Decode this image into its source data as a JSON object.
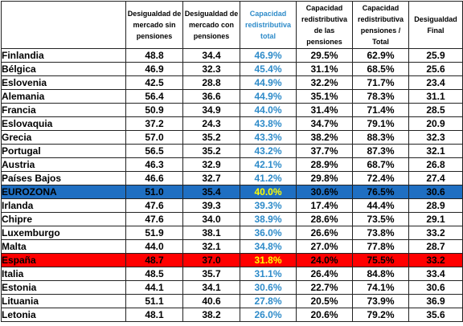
{
  "table": {
    "headers": [
      "",
      "Desigualdad de mercado sin pensiones",
      "Desigualdad de mercado con pensiones",
      "Capacidad redistributiva total",
      "Capacidad redistributiva de las pensiones",
      "Capacidad redistributiva pensiones / Total",
      "Desigualdad Final"
    ],
    "header_colors": [
      "#000000",
      "#000000",
      "#000000",
      "#2e8bc9",
      "#000000",
      "#000000",
      "#000000"
    ],
    "highlight_colors": {
      "eurozona_bg": "#1f6fc2",
      "espana_bg": "#ff0000",
      "highlight_text": "#ffff00",
      "blue_text": "#2e8bc9"
    },
    "rows": [
      {
        "country": "Finlandia",
        "values": [
          "48.8",
          "34.4",
          "46.9%",
          "29.5%",
          "62.9%",
          "25.9"
        ]
      },
      {
        "country": "Bélgica",
        "values": [
          "46.9",
          "32.3",
          "45.4%",
          "31.1%",
          "68.5%",
          "25.6"
        ]
      },
      {
        "country": "Eslovenia",
        "values": [
          "42.5",
          "28.8",
          "44.9%",
          "32.2%",
          "71.7%",
          "23.4"
        ]
      },
      {
        "country": "Alemania",
        "values": [
          "56.4",
          "36.6",
          "44.9%",
          "35.1%",
          "78.3%",
          "31.1"
        ]
      },
      {
        "country": "Francia",
        "values": [
          "50.9",
          "34.9",
          "44.0%",
          "31.4%",
          "71.4%",
          "28.5"
        ]
      },
      {
        "country": "Eslovaquia",
        "values": [
          "37.2",
          "24.3",
          "43.8%",
          "34.7%",
          "79.1%",
          "20.9"
        ]
      },
      {
        "country": "Grecia",
        "values": [
          "57.0",
          "35.2",
          "43.3%",
          "38.2%",
          "88.3%",
          "32.3"
        ]
      },
      {
        "country": "Portugal",
        "values": [
          "56.5",
          "35.2",
          "43.2%",
          "37.7%",
          "87.3%",
          "32.1"
        ]
      },
      {
        "country": "Austria",
        "values": [
          "46.3",
          "32.9",
          "42.1%",
          "28.9%",
          "68.7%",
          "26.8"
        ]
      },
      {
        "country": "Países Bajos",
        "values": [
          "46.6",
          "32.7",
          "41.2%",
          "29.8%",
          "72.4%",
          "27.4"
        ]
      },
      {
        "country": "EUROZONA",
        "values": [
          "51.0",
          "35.4",
          "40.0%",
          "30.6%",
          "76.5%",
          "30.6"
        ]
      },
      {
        "country": "Irlanda",
        "values": [
          "47.6",
          "39.3",
          "39.3%",
          "17.4%",
          "44.4%",
          "28.9"
        ]
      },
      {
        "country": "Chipre",
        "values": [
          "47.6",
          "34.0",
          "38.9%",
          "28.6%",
          "73.5%",
          "29.1"
        ]
      },
      {
        "country": "Luxemburgo",
        "values": [
          "51.9",
          "38.1",
          "36.0%",
          "26.6%",
          "73.8%",
          "33.2"
        ]
      },
      {
        "country": "Malta",
        "values": [
          "44.0",
          "32.1",
          "34.8%",
          "27.0%",
          "77.8%",
          "28.7"
        ]
      },
      {
        "country": "España",
        "values": [
          "48.7",
          "37.0",
          "31.8%",
          "24.0%",
          "75.5%",
          "33.2"
        ]
      },
      {
        "country": "Italia",
        "values": [
          "48.5",
          "35.7",
          "31.1%",
          "26.4%",
          "84.8%",
          "33.4"
        ]
      },
      {
        "country": "Estonia",
        "values": [
          "44.1",
          "34.1",
          "30.6%",
          "22.7%",
          "74.1%",
          "30.6"
        ]
      },
      {
        "country": "Lituania",
        "values": [
          "51.1",
          "40.6",
          "27.8%",
          "20.5%",
          "73.9%",
          "36.9"
        ]
      },
      {
        "country": "Letonia",
        "values": [
          "48.1",
          "38.2",
          "26.0%",
          "20.6%",
          "79.2%",
          "35.6"
        ]
      }
    ]
  }
}
